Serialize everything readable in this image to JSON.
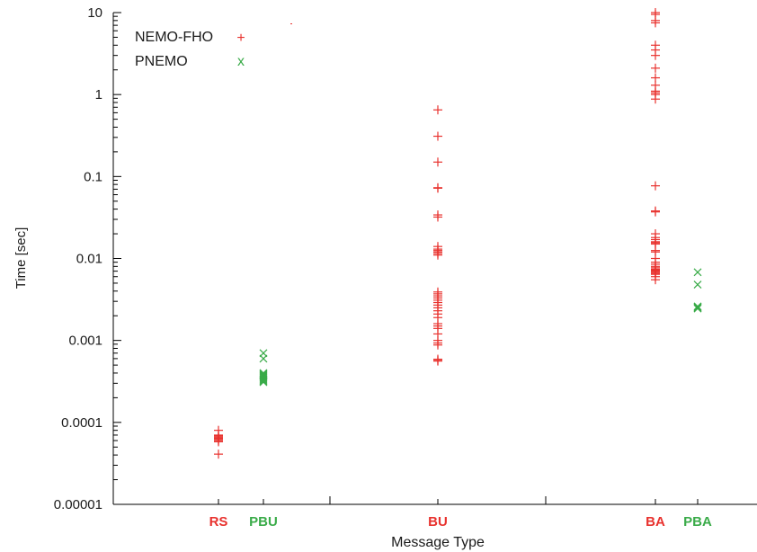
{
  "chart_data": {
    "type": "scatter",
    "title": "",
    "xlabel": "Message Type",
    "ylabel": "Time [sec]",
    "yscale": "log",
    "ylim": [
      1e-05,
      10
    ],
    "grid": false,
    "legend_position": "top-left",
    "y_ticks": [
      {
        "value": 1e-05,
        "label": "0.00001"
      },
      {
        "value": 0.0001,
        "label": "0.0001"
      },
      {
        "value": 0.001,
        "label": "0.001"
      },
      {
        "value": 0.01,
        "label": "0.01"
      },
      {
        "value": 0.1,
        "label": "0.1"
      },
      {
        "value": 1,
        "label": "1"
      },
      {
        "value": 10,
        "label": "10"
      }
    ],
    "categories": [
      {
        "label": "RS",
        "series": "NEMO-FHO",
        "color": "#e8322e"
      },
      {
        "label": "PBU",
        "series": "PNEMO",
        "color": "#3aab49"
      },
      {
        "label": "BU",
        "series": "NEMO-FHO",
        "color": "#e8322e"
      },
      {
        "label": "BA",
        "series": "NEMO-FHO",
        "color": "#e8322e"
      },
      {
        "label": "PBA",
        "series": "PNEMO",
        "color": "#3aab49"
      }
    ],
    "series": [
      {
        "name": "NEMO-FHO",
        "marker": "+",
        "color": "#e8322e",
        "legend_symbol": "+",
        "points": {
          "RS": [
            8e-05,
            7e-05,
            6.8e-05,
            6.6e-05,
            6.4e-05,
            6.2e-05,
            6e-05,
            5.8e-05,
            4.1e-05
          ],
          "BU": [
            0.65,
            0.31,
            0.15,
            0.073,
            0.072,
            0.034,
            0.032,
            0.014,
            0.013,
            0.0125,
            0.012,
            0.0115,
            0.011,
            0.0039,
            0.0037,
            0.0035,
            0.0033,
            0.0031,
            0.0029,
            0.0027,
            0.0025,
            0.0023,
            0.0021,
            0.0019,
            0.0016,
            0.0015,
            0.0014,
            0.0012,
            0.001,
            0.00093,
            0.00088,
            0.00059,
            0.00057,
            0.00056
          ],
          "BA": [
            10,
            9.5,
            8,
            7.5,
            4,
            3.5,
            3,
            2.1,
            1.6,
            1.3,
            1.1,
            1.05,
            1.0,
            0.88,
            0.077,
            0.038,
            0.037,
            0.02,
            0.018,
            0.017,
            0.016,
            0.0155,
            0.015,
            0.0125,
            0.012,
            0.01,
            0.009,
            0.0085,
            0.008,
            0.0077,
            0.0074,
            0.0072,
            0.007,
            0.0068,
            0.0066,
            0.0064,
            0.006,
            0.0055
          ]
        }
      },
      {
        "name": "PNEMO",
        "marker": "x",
        "color": "#3aab49",
        "legend_symbol": "x",
        "points": {
          "PBU": [
            0.0007,
            0.0006,
            0.0004,
            0.00039,
            0.00038,
            0.00037,
            0.00036,
            0.00035,
            0.00034,
            0.00033,
            0.00032,
            0.00031
          ],
          "PBA": [
            0.0068,
            0.0048,
            0.0026,
            0.00255,
            0.0025,
            0.00245
          ]
        }
      }
    ]
  }
}
